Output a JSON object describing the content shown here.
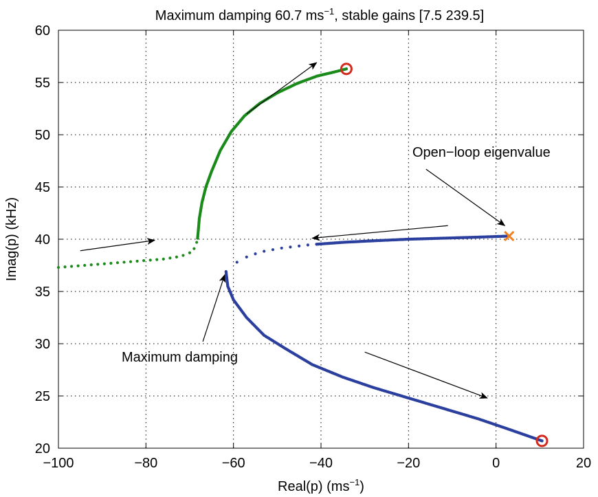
{
  "chart_data": {
    "type": "scatter",
    "title": {
      "main": "Maximum damping 60.7 ms",
      "sup": "−1",
      "rest": ", stable gains [7.5 239.5]"
    },
    "xlabel": {
      "main": "Real(p) (ms",
      "sup": "−1",
      "rest": ")"
    },
    "ylabel": "Imag(p) (kHz)",
    "xlim": [
      -100,
      20
    ],
    "ylim": [
      20,
      60
    ],
    "xticks": [
      -100,
      -80,
      -60,
      -40,
      -20,
      0,
      20
    ],
    "yticks": [
      20,
      25,
      30,
      35,
      40,
      45,
      50,
      55,
      60
    ],
    "xtick_labels": [
      "−100",
      "−80",
      "−60",
      "−40",
      "−20",
      "0",
      "20"
    ],
    "ytick_labels": [
      "20",
      "25",
      "30",
      "35",
      "40",
      "45",
      "50",
      "55",
      "60"
    ],
    "grid": true,
    "colors": {
      "green_branch": "#1a8a1a",
      "blue_branch": "#2b3f9e",
      "open_loop_marker": "#f08020",
      "end_marker": "#d42a1e"
    },
    "series": [
      {
        "color": "green",
        "sparse_points": [
          [
            -100,
            37.3
          ],
          [
            -98.5,
            37.35
          ],
          [
            -97,
            37.4
          ],
          [
            -95.5,
            37.45
          ],
          [
            -94,
            37.5
          ],
          [
            -92.5,
            37.55
          ],
          [
            -91,
            37.6
          ],
          [
            -89.5,
            37.65
          ],
          [
            -88,
            37.7
          ],
          [
            -86.5,
            37.75
          ],
          [
            -85,
            37.8
          ],
          [
            -83.5,
            37.85
          ],
          [
            -82,
            37.9
          ],
          [
            -80.5,
            37.95
          ],
          [
            -79,
            38.0
          ],
          [
            -77.5,
            38.05
          ],
          [
            -76,
            38.1
          ],
          [
            -74.5,
            38.2
          ],
          [
            -73,
            38.3
          ],
          [
            -71.5,
            38.45
          ],
          [
            -70,
            38.7
          ],
          [
            -69,
            39.1
          ],
          [
            -68.4,
            39.7
          ],
          [
            -68.2,
            40.1
          ]
        ],
        "curve": [
          [
            -68.2,
            40.1
          ],
          [
            -68.0,
            41.0
          ],
          [
            -67.8,
            42.0
          ],
          [
            -67.2,
            43.5
          ],
          [
            -66.3,
            45.0
          ],
          [
            -65.0,
            46.5
          ],
          [
            -63.0,
            48.5
          ],
          [
            -60.5,
            50.3
          ],
          [
            -57.5,
            51.8
          ],
          [
            -54.0,
            53.0
          ],
          [
            -50.0,
            54.0
          ],
          [
            -45.5,
            54.9
          ],
          [
            -41.0,
            55.6
          ],
          [
            -37.0,
            56.0
          ],
          [
            -34.2,
            56.3
          ]
        ]
      },
      {
        "color": "blue",
        "sparse_points": [
          [
            -59.2,
            37.8
          ],
          [
            -57.0,
            38.3
          ],
          [
            -55.0,
            38.6
          ],
          [
            -53.0,
            38.85
          ],
          [
            -51.0,
            39.0
          ],
          [
            -49.0,
            39.15
          ],
          [
            -47.0,
            39.25
          ],
          [
            -45.0,
            39.35
          ],
          [
            -43.0,
            39.45
          ],
          [
            -41.0,
            39.52
          ]
        ],
        "curve_upper": [
          [
            -41.0,
            39.52
          ],
          [
            -35.0,
            39.7
          ],
          [
            -28.0,
            39.85
          ],
          [
            -20.0,
            40.0
          ],
          [
            -12.0,
            40.1
          ],
          [
            -4.0,
            40.2
          ],
          [
            3.0,
            40.3
          ]
        ],
        "curve_lower": [
          [
            -61.7,
            36.9
          ],
          [
            -61.3,
            35.5
          ],
          [
            -60.0,
            34.2
          ],
          [
            -57.0,
            32.5
          ],
          [
            -53.0,
            30.8
          ],
          [
            -48.0,
            29.5
          ],
          [
            -42.0,
            28.0
          ],
          [
            -35.0,
            26.8
          ],
          [
            -28.0,
            25.8
          ],
          [
            -20.0,
            24.8
          ],
          [
            -12.0,
            23.8
          ],
          [
            -4.0,
            22.8
          ],
          [
            3.0,
            21.8
          ],
          [
            10.5,
            20.7
          ]
        ]
      }
    ],
    "markers": {
      "open_loop_eigenvalue": [
        3.0,
        40.3
      ],
      "end_points": [
        [
          -34.2,
          56.3
        ],
        [
          10.5,
          20.7
        ]
      ]
    },
    "annotations": {
      "open_loop_label": "Open−loop eigenvalue",
      "max_damping_label": "Maximum damping"
    },
    "direction_arrows": [
      {
        "from": [
          -95,
          38.9
        ],
        "to": [
          -78,
          39.9
        ]
      },
      {
        "from": [
          -57,
          52.0
        ],
        "to": [
          -41,
          56.9
        ]
      },
      {
        "from": [
          -11,
          41.3
        ],
        "to": [
          -42,
          40.1
        ]
      },
      {
        "from": [
          -30,
          29.2
        ],
        "to": [
          -2,
          24.8
        ]
      },
      {
        "from": [
          -16,
          46.7
        ],
        "to": [
          2,
          41.3
        ]
      },
      {
        "from": [
          -67,
          30.2
        ],
        "to": [
          -62,
          36.6
        ]
      }
    ]
  }
}
